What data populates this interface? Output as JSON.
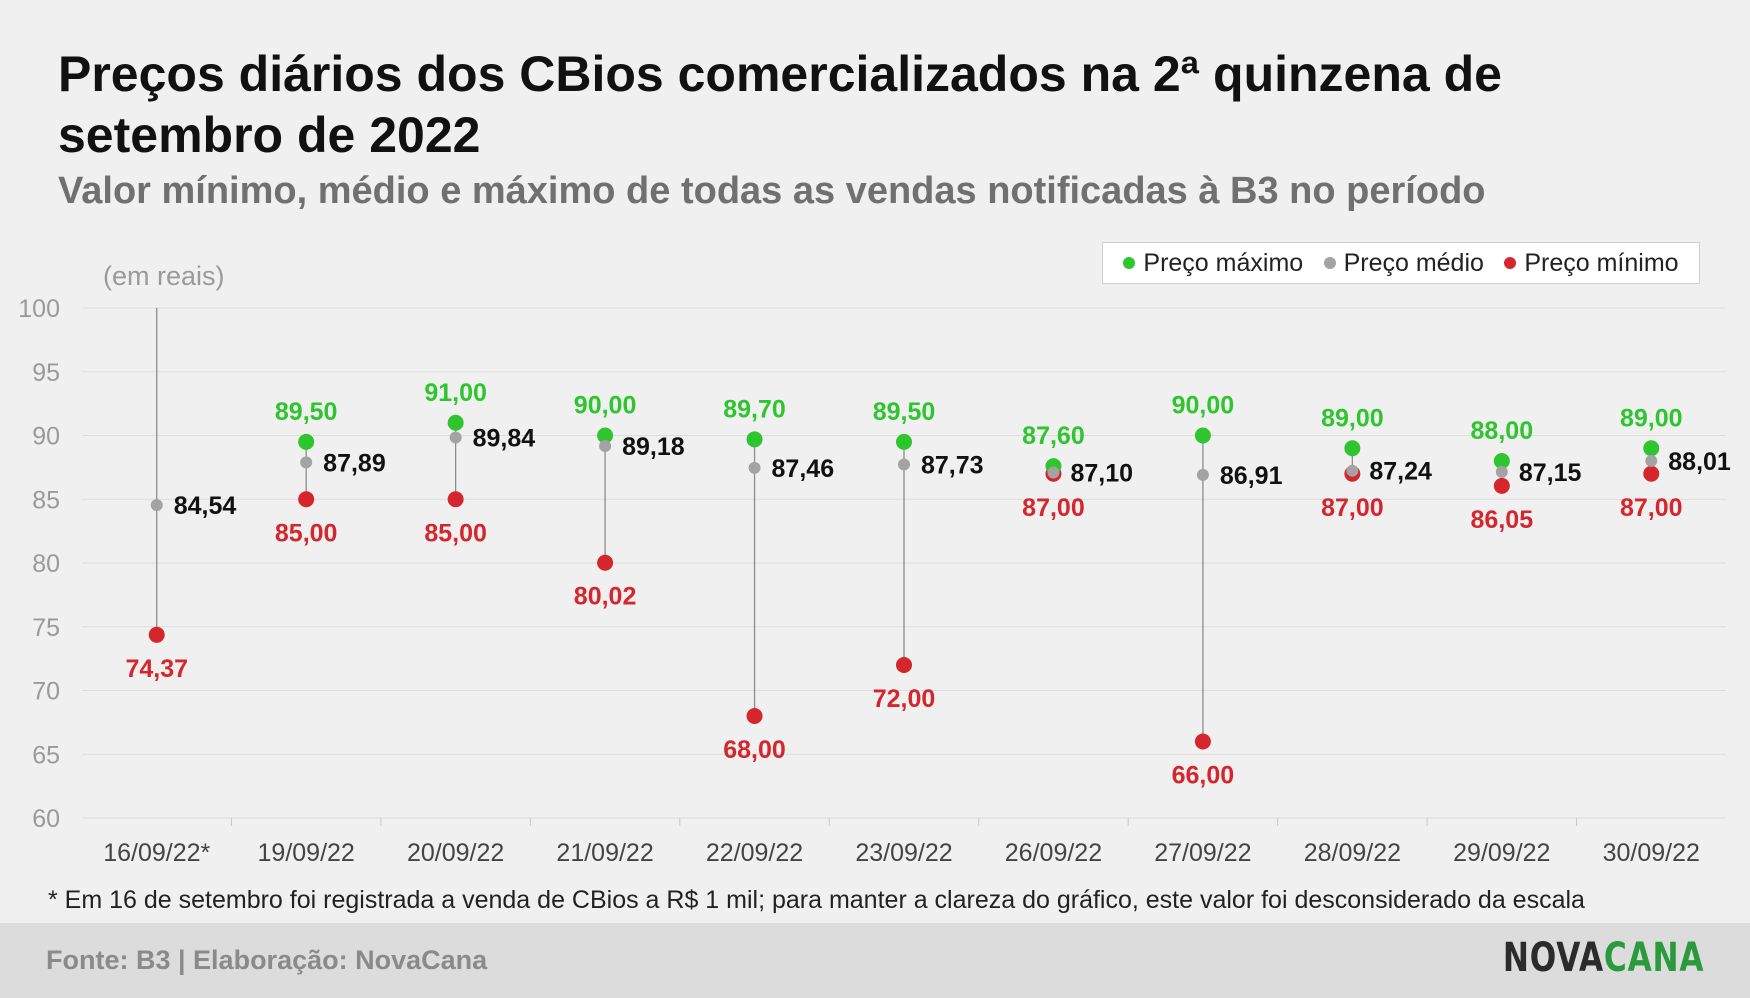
{
  "title": "Preços diários dos CBios comercializados na 2ª quinzena de setembro de 2022",
  "subtitle": "Valor mínimo, médio e máximo de todas as vendas notificadas à B3 no período",
  "legend": {
    "max_label": "Preço máximo",
    "avg_label": "Preço médio",
    "min_label": "Preço mínimo"
  },
  "colors": {
    "max": "#2ec52e",
    "avg": "#a3a3a3",
    "min": "#d4262c",
    "avg_text": "#111111",
    "axis_text": "#9a9a9a",
    "grid": "#dddddd"
  },
  "footnote": "* Em 16 de setembro foi registrada a venda de CBios a R$ 1 mil; para manter a clareza do gráfico, este valor foi desconsiderado da escala",
  "footer": {
    "source": "Fonte: B3 | Elaboração: NovaCana",
    "logo_part1": "NOVA",
    "logo_part2": "CANA"
  },
  "chart_data": {
    "type": "dot-range",
    "ylabel": "(em reais)",
    "ylim": [
      60,
      100
    ],
    "yticks": [
      "60",
      "65",
      "70",
      "75",
      "80",
      "85",
      "90",
      "95",
      "100"
    ],
    "grid": true,
    "legend_position": "top-right",
    "categories": [
      "16/09/22*",
      "19/09/22",
      "20/09/22",
      "21/09/22",
      "22/09/22",
      "23/09/22",
      "26/09/22",
      "27/09/22",
      "28/09/22",
      "29/09/22",
      "30/09/22"
    ],
    "series": [
      {
        "name": "Preço máximo",
        "values": [
          null,
          89.5,
          91.0,
          90.0,
          89.7,
          89.5,
          87.6,
          90.0,
          89.0,
          88.0,
          89.0
        ],
        "labels": [
          "",
          "89,50",
          "91,00",
          "90,00",
          "89,70",
          "89,50",
          "87,60",
          "90,00",
          "89,00",
          "88,00",
          "89,00"
        ]
      },
      {
        "name": "Preço médio",
        "values": [
          84.54,
          87.89,
          89.84,
          89.18,
          87.46,
          87.73,
          87.1,
          86.91,
          87.24,
          87.15,
          88.01
        ],
        "labels": [
          "84,54",
          "87,89",
          "89,84",
          "89,18",
          "87,46",
          "87,73",
          "87,10",
          "86,91",
          "87,24",
          "87,15",
          "88,01"
        ]
      },
      {
        "name": "Preço mínimo",
        "values": [
          74.37,
          85.0,
          85.0,
          80.02,
          68.0,
          72.0,
          87.0,
          66.0,
          87.0,
          86.05,
          87.0
        ],
        "labels": [
          "74,37",
          "85,00",
          "85,00",
          "80,02",
          "68,00",
          "72,00",
          "87,00",
          "66,00",
          "87,00",
          "86,05",
          "87,00"
        ]
      }
    ]
  }
}
